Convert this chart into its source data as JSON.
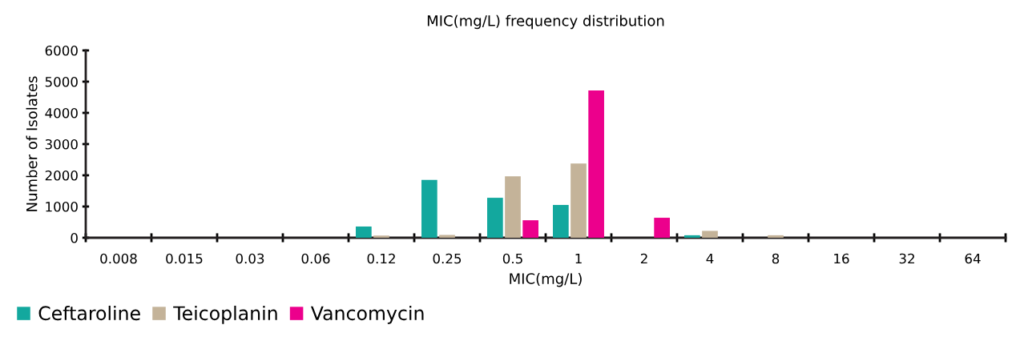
{
  "chart_data": {
    "type": "bar",
    "title": "MIC(mg/L) frequency distribution",
    "xlabel": "MIC(mg/L)",
    "ylabel": "Number of Isolates",
    "categories": [
      "0.008",
      "0.015",
      "0.03",
      "0.06",
      "0.12",
      "0.25",
      "0.5",
      "1",
      "2",
      "4",
      "8",
      "16",
      "32",
      "64"
    ],
    "series": [
      {
        "name": "Ceftaroline",
        "color": "#13a89e",
        "values": [
          0,
          0,
          0,
          0,
          360,
          1850,
          1280,
          1050,
          0,
          80,
          0,
          0,
          0,
          0
        ]
      },
      {
        "name": "Teicoplanin",
        "color": "#c4b399",
        "values": [
          0,
          0,
          0,
          0,
          70,
          90,
          1970,
          2380,
          0,
          220,
          80,
          0,
          0,
          0
        ]
      },
      {
        "name": "Vancomycin",
        "color": "#ec008c",
        "values": [
          0,
          0,
          0,
          0,
          0,
          0,
          560,
          4720,
          640,
          0,
          0,
          0,
          0,
          0
        ]
      }
    ],
    "ylim": [
      0,
      6000
    ],
    "yticks": [
      0,
      1000,
      2000,
      3000,
      4000,
      5000,
      6000
    ],
    "grid": false,
    "legend": "bottom left"
  }
}
